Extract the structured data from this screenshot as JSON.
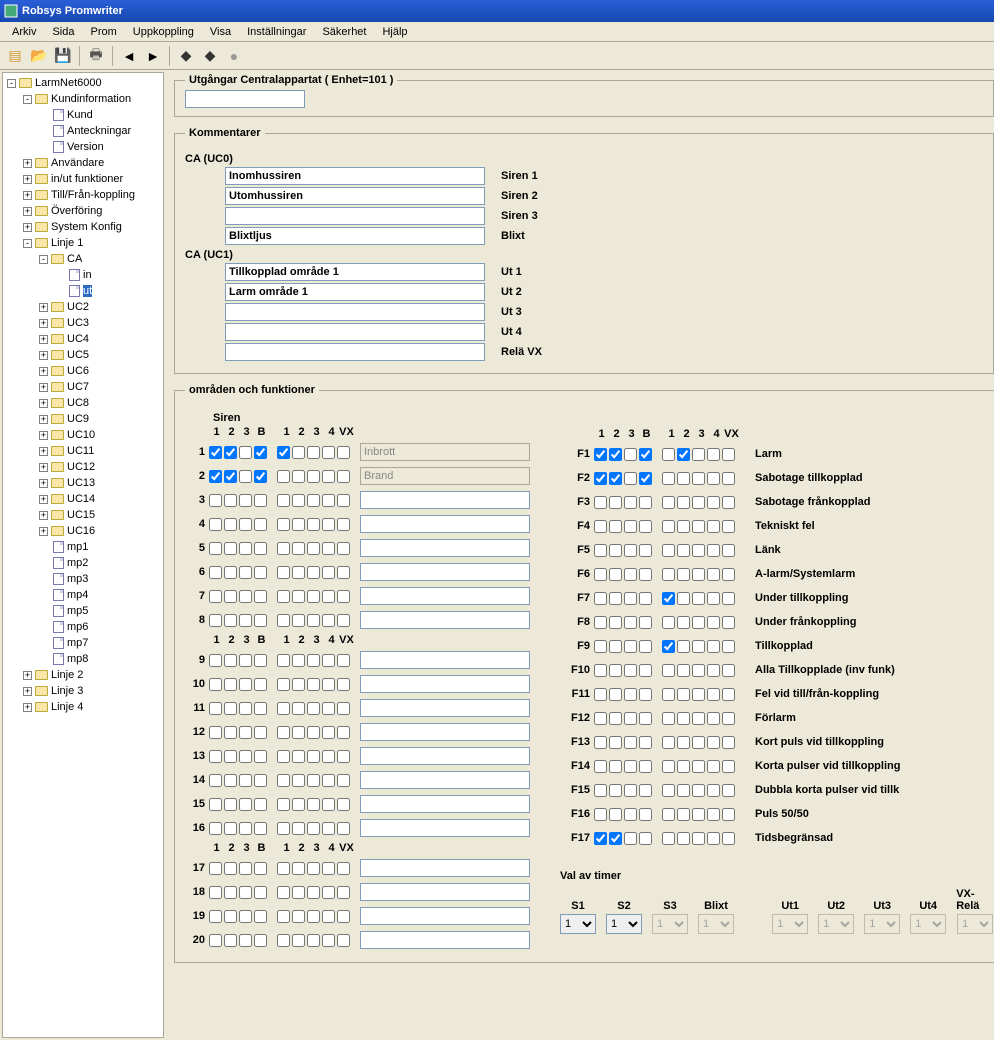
{
  "window": {
    "title": "Robsys Promwriter"
  },
  "menu": [
    "Arkiv",
    "Sida",
    "Prom",
    "Uppkoppling",
    "Visa",
    "Inställningar",
    "Säkerhet",
    "Hjälp"
  ],
  "toolbar": {
    "icons": [
      {
        "name": "new-icon",
        "glyph": "▤",
        "color": "#d69b3a"
      },
      {
        "name": "open-icon",
        "glyph": "📂",
        "color": "#d69b3a"
      },
      {
        "name": "save-icon",
        "glyph": "💾",
        "color": "#333"
      },
      {
        "sep": true
      },
      {
        "name": "print-icon",
        "glyph": "🖶",
        "color": "#555"
      },
      {
        "sep": true
      },
      {
        "name": "prev-icon",
        "glyph": "◄",
        "color": "#000"
      },
      {
        "name": "next-icon",
        "glyph": "►",
        "color": "#000"
      },
      {
        "sep": true
      },
      {
        "name": "chip1-icon",
        "glyph": "◆",
        "color": "#333"
      },
      {
        "name": "chip2-icon",
        "glyph": "◆",
        "color": "#333"
      },
      {
        "name": "record-icon",
        "glyph": "●",
        "color": "#999"
      }
    ]
  },
  "tree": [
    {
      "d": 0,
      "exp": "-",
      "icon": "chip",
      "label": "LarmNet6000"
    },
    {
      "d": 1,
      "exp": "-",
      "icon": "folder",
      "label": "Kundinformation"
    },
    {
      "d": 2,
      "exp": "",
      "icon": "page",
      "label": "Kund"
    },
    {
      "d": 2,
      "exp": "",
      "icon": "page",
      "label": "Anteckningar"
    },
    {
      "d": 2,
      "exp": "",
      "icon": "page",
      "label": "Version"
    },
    {
      "d": 1,
      "exp": "+",
      "icon": "folder",
      "label": "Användare"
    },
    {
      "d": 1,
      "exp": "+",
      "icon": "folder",
      "label": "in/ut funktioner"
    },
    {
      "d": 1,
      "exp": "+",
      "icon": "folder",
      "label": "Till/Från-koppling"
    },
    {
      "d": 1,
      "exp": "+",
      "icon": "folder",
      "label": "Överföring"
    },
    {
      "d": 1,
      "exp": "+",
      "icon": "folder",
      "label": "System Konfig"
    },
    {
      "d": 1,
      "exp": "-",
      "icon": "folder",
      "label": "Linje 1"
    },
    {
      "d": 2,
      "exp": "-",
      "icon": "folder",
      "label": "CA"
    },
    {
      "d": 3,
      "exp": "",
      "icon": "page",
      "label": "in"
    },
    {
      "d": 3,
      "exp": "",
      "icon": "page",
      "label": "ut",
      "sel": true
    },
    {
      "d": 2,
      "exp": "+",
      "icon": "folder",
      "label": "UC2"
    },
    {
      "d": 2,
      "exp": "+",
      "icon": "folder",
      "label": "UC3"
    },
    {
      "d": 2,
      "exp": "+",
      "icon": "folder",
      "label": "UC4"
    },
    {
      "d": 2,
      "exp": "+",
      "icon": "folder",
      "label": "UC5"
    },
    {
      "d": 2,
      "exp": "+",
      "icon": "folder",
      "label": "UC6"
    },
    {
      "d": 2,
      "exp": "+",
      "icon": "folder",
      "label": "UC7"
    },
    {
      "d": 2,
      "exp": "+",
      "icon": "folder",
      "label": "UC8"
    },
    {
      "d": 2,
      "exp": "+",
      "icon": "folder",
      "label": "UC9"
    },
    {
      "d": 2,
      "exp": "+",
      "icon": "folder",
      "label": "UC10"
    },
    {
      "d": 2,
      "exp": "+",
      "icon": "folder",
      "label": "UC11"
    },
    {
      "d": 2,
      "exp": "+",
      "icon": "folder",
      "label": "UC12"
    },
    {
      "d": 2,
      "exp": "+",
      "icon": "folder",
      "label": "UC13"
    },
    {
      "d": 2,
      "exp": "+",
      "icon": "folder",
      "label": "UC14"
    },
    {
      "d": 2,
      "exp": "+",
      "icon": "folder",
      "label": "UC15"
    },
    {
      "d": 2,
      "exp": "+",
      "icon": "folder",
      "label": "UC16"
    },
    {
      "d": 2,
      "exp": "",
      "icon": "page",
      "label": "mp1"
    },
    {
      "d": 2,
      "exp": "",
      "icon": "page",
      "label": "mp2"
    },
    {
      "d": 2,
      "exp": "",
      "icon": "page",
      "label": "mp3"
    },
    {
      "d": 2,
      "exp": "",
      "icon": "page",
      "label": "mp4"
    },
    {
      "d": 2,
      "exp": "",
      "icon": "page",
      "label": "mp5"
    },
    {
      "d": 2,
      "exp": "",
      "icon": "page",
      "label": "mp6"
    },
    {
      "d": 2,
      "exp": "",
      "icon": "page",
      "label": "mp7"
    },
    {
      "d": 2,
      "exp": "",
      "icon": "page",
      "label": "mp8"
    },
    {
      "d": 1,
      "exp": "+",
      "icon": "folder",
      "label": "Linje 2"
    },
    {
      "d": 1,
      "exp": "+",
      "icon": "folder",
      "label": "Linje 3"
    },
    {
      "d": 1,
      "exp": "+",
      "icon": "folder",
      "label": "Linje 4"
    }
  ],
  "header": {
    "legend": "Utgångar Centralappartat ( Enhet=101 )",
    "value": ""
  },
  "kommentarer": {
    "legend": "Kommentarer",
    "uc0_label": "CA (UC0)",
    "uc1_label": "CA (UC1)",
    "uc0": [
      {
        "value": "Inomhussiren",
        "label": "Siren 1"
      },
      {
        "value": "Utomhussiren",
        "label": "Siren 2"
      },
      {
        "value": "",
        "label": "Siren 3"
      },
      {
        "value": "Blixtljus",
        "label": "Blixt"
      }
    ],
    "uc1": [
      {
        "value": "Tillkopplad område 1",
        "label": "Ut 1"
      },
      {
        "value": "Larm område 1",
        "label": "Ut 2"
      },
      {
        "value": "",
        "label": "Ut 3"
      },
      {
        "value": "",
        "label": "Ut 4"
      },
      {
        "value": "",
        "label": "Relä VX"
      }
    ]
  },
  "omraden": {
    "legend": "områden och funktioner",
    "siren_label": "Siren",
    "left_headers": [
      "1",
      "2",
      "3",
      "B",
      "1",
      "2",
      "3",
      "4",
      "VX"
    ],
    "left_rows": [
      {
        "n": "1",
        "c": [
          true,
          true,
          false,
          true,
          true,
          false,
          false,
          false,
          false
        ],
        "txt": "Inbrott",
        "dis": true
      },
      {
        "n": "2",
        "c": [
          true,
          true,
          false,
          true,
          false,
          false,
          false,
          false,
          false
        ],
        "txt": "Brand",
        "dis": true
      },
      {
        "n": "3",
        "c": [
          false,
          false,
          false,
          false,
          false,
          false,
          false,
          false,
          false
        ],
        "txt": ""
      },
      {
        "n": "4",
        "c": [
          false,
          false,
          false,
          false,
          false,
          false,
          false,
          false,
          false
        ],
        "txt": ""
      },
      {
        "n": "5",
        "c": [
          false,
          false,
          false,
          false,
          false,
          false,
          false,
          false,
          false
        ],
        "txt": ""
      },
      {
        "n": "6",
        "c": [
          false,
          false,
          false,
          false,
          false,
          false,
          false,
          false,
          false
        ],
        "txt": ""
      },
      {
        "n": "7",
        "c": [
          false,
          false,
          false,
          false,
          false,
          false,
          false,
          false,
          false
        ],
        "txt": ""
      },
      {
        "n": "8",
        "c": [
          false,
          false,
          false,
          false,
          false,
          false,
          false,
          false,
          false
        ],
        "txt": ""
      },
      {
        "hdr": true
      },
      {
        "n": "9",
        "c": [
          false,
          false,
          false,
          false,
          false,
          false,
          false,
          false,
          false
        ],
        "txt": ""
      },
      {
        "n": "10",
        "c": [
          false,
          false,
          false,
          false,
          false,
          false,
          false,
          false,
          false
        ],
        "txt": ""
      },
      {
        "n": "11",
        "c": [
          false,
          false,
          false,
          false,
          false,
          false,
          false,
          false,
          false
        ],
        "txt": ""
      },
      {
        "n": "12",
        "c": [
          false,
          false,
          false,
          false,
          false,
          false,
          false,
          false,
          false
        ],
        "txt": ""
      },
      {
        "n": "13",
        "c": [
          false,
          false,
          false,
          false,
          false,
          false,
          false,
          false,
          false
        ],
        "txt": ""
      },
      {
        "n": "14",
        "c": [
          false,
          false,
          false,
          false,
          false,
          false,
          false,
          false,
          false
        ],
        "txt": ""
      },
      {
        "n": "15",
        "c": [
          false,
          false,
          false,
          false,
          false,
          false,
          false,
          false,
          false
        ],
        "txt": ""
      },
      {
        "n": "16",
        "c": [
          false,
          false,
          false,
          false,
          false,
          false,
          false,
          false,
          false
        ],
        "txt": ""
      },
      {
        "hdr": true
      },
      {
        "n": "17",
        "c": [
          false,
          false,
          false,
          false,
          false,
          false,
          false,
          false,
          false
        ],
        "txt": ""
      },
      {
        "n": "18",
        "c": [
          false,
          false,
          false,
          false,
          false,
          false,
          false,
          false,
          false
        ],
        "txt": ""
      },
      {
        "n": "19",
        "c": [
          false,
          false,
          false,
          false,
          false,
          false,
          false,
          false,
          false
        ],
        "txt": ""
      },
      {
        "n": "20",
        "c": [
          false,
          false,
          false,
          false,
          false,
          false,
          false,
          false,
          false
        ],
        "txt": ""
      }
    ],
    "right_headers": [
      "1",
      "2",
      "3",
      "B",
      "1",
      "2",
      "3",
      "4",
      "VX"
    ],
    "right_rows": [
      {
        "n": "F1",
        "c": [
          true,
          true,
          false,
          true,
          false,
          true,
          false,
          false,
          false
        ],
        "label": "Larm"
      },
      {
        "n": "F2",
        "c": [
          true,
          true,
          false,
          true,
          false,
          false,
          false,
          false,
          false
        ],
        "label": "Sabotage tillkopplad"
      },
      {
        "n": "F3",
        "c": [
          false,
          false,
          false,
          false,
          false,
          false,
          false,
          false,
          false
        ],
        "label": "Sabotage frånkopplad"
      },
      {
        "n": "F4",
        "c": [
          false,
          false,
          false,
          false,
          false,
          false,
          false,
          false,
          false
        ],
        "label": "Tekniskt fel"
      },
      {
        "n": "F5",
        "c": [
          false,
          false,
          false,
          false,
          false,
          false,
          false,
          false,
          false
        ],
        "label": "Länk"
      },
      {
        "n": "F6",
        "c": [
          false,
          false,
          false,
          false,
          false,
          false,
          false,
          false,
          false
        ],
        "label": "A-larm/Systemlarm"
      },
      {
        "n": "F7",
        "c": [
          false,
          false,
          false,
          false,
          true,
          false,
          false,
          false,
          false
        ],
        "label": "Under tillkoppling"
      },
      {
        "n": "F8",
        "c": [
          false,
          false,
          false,
          false,
          false,
          false,
          false,
          false,
          false
        ],
        "label": "Under frånkoppling"
      },
      {
        "n": "F9",
        "c": [
          false,
          false,
          false,
          false,
          true,
          false,
          false,
          false,
          false
        ],
        "label": "Tillkopplad"
      },
      {
        "n": "F10",
        "c": [
          false,
          false,
          false,
          false,
          false,
          false,
          false,
          false,
          false
        ],
        "label": "Alla Tillkopplade  (inv funk)"
      },
      {
        "n": "F11",
        "c": [
          false,
          false,
          false,
          false,
          false,
          false,
          false,
          false,
          false
        ],
        "label": "Fel vid till/från-koppling"
      },
      {
        "n": "F12",
        "c": [
          false,
          false,
          false,
          false,
          false,
          false,
          false,
          false,
          false
        ],
        "label": "Förlarm"
      },
      {
        "n": "F13",
        "c": [
          false,
          false,
          false,
          false,
          false,
          false,
          false,
          false,
          false
        ],
        "label": "Kort puls vid tillkoppling"
      },
      {
        "n": "F14",
        "c": [
          false,
          false,
          false,
          false,
          false,
          false,
          false,
          false,
          false
        ],
        "label": "Korta pulser vid tillkoppling"
      },
      {
        "n": "F15",
        "c": [
          false,
          false,
          false,
          false,
          false,
          false,
          false,
          false,
          false
        ],
        "label": "Dubbla korta pulser vid tillk"
      },
      {
        "n": "F16",
        "c": [
          false,
          false,
          false,
          false,
          false,
          false,
          false,
          false,
          false
        ],
        "label": "Puls 50/50"
      },
      {
        "n": "F17",
        "c": [
          true,
          true,
          false,
          false,
          false,
          false,
          false,
          false,
          false
        ],
        "label": "Tidsbegränsad"
      }
    ]
  },
  "timer": {
    "legend": "Val av timer",
    "items": [
      {
        "label": "S1",
        "value": "1",
        "enabled": true
      },
      {
        "label": "S2",
        "value": "1",
        "enabled": true
      },
      {
        "label": "S3",
        "value": "1",
        "enabled": false
      },
      {
        "label": "Blixt",
        "value": "1",
        "enabled": false
      },
      {
        "label": "Ut1",
        "value": "1",
        "enabled": false,
        "gap": true
      },
      {
        "label": "Ut2",
        "value": "1",
        "enabled": false
      },
      {
        "label": "Ut3",
        "value": "1",
        "enabled": false
      },
      {
        "label": "Ut4",
        "value": "1",
        "enabled": false
      },
      {
        "label": "VX-Relä",
        "value": "1",
        "enabled": false
      }
    ]
  },
  "colors": {
    "titlebar_bg": "#1648b0",
    "surface": "#ece9d8",
    "border": "#aca899",
    "input_border": "#7f9db9",
    "selection": "#316ac5"
  }
}
